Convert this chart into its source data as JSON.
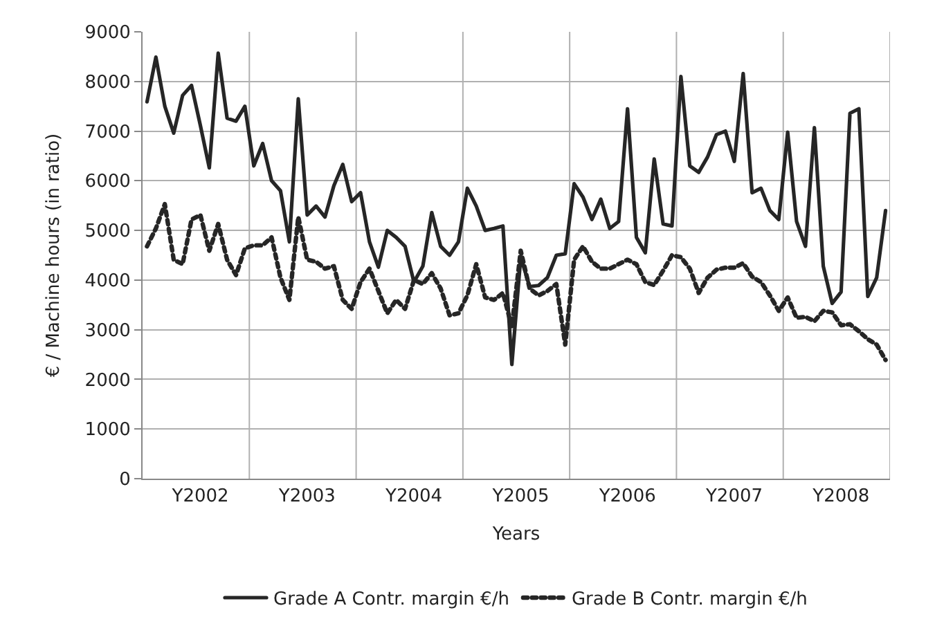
{
  "chart_data": {
    "type": "line",
    "xlabel": "Years",
    "ylabel": "€ / Machine hours (in ratio)",
    "categories": [
      null,
      null,
      null,
      null,
      null,
      null,
      "Y2002",
      null,
      null,
      null,
      null,
      null,
      null,
      null,
      null,
      null,
      null,
      null,
      "Y2003",
      null,
      null,
      null,
      null,
      null,
      null,
      null,
      null,
      null,
      null,
      null,
      "Y2004",
      null,
      null,
      null,
      null,
      null,
      null,
      null,
      null,
      null,
      null,
      null,
      "Y2005",
      null,
      null,
      null,
      null,
      null,
      null,
      null,
      null,
      null,
      null,
      null,
      "Y2006",
      null,
      null,
      null,
      null,
      null,
      null,
      null,
      null,
      null,
      null,
      null,
      "Y2007",
      null,
      null,
      null,
      null,
      null,
      null,
      null,
      null,
      null,
      null,
      null,
      "Y2008",
      null,
      null,
      null,
      null,
      null
    ],
    "series": [
      {
        "name": "Grade A Contr. margin €/h",
        "color": "#262626",
        "line_style": "solid",
        "values": [
          7590,
          8490,
          7500,
          6960,
          7720,
          7920,
          7110,
          6260,
          8570,
          7260,
          7200,
          7500,
          6300,
          6750,
          6000,
          5800,
          4770,
          7650,
          5310,
          5490,
          5270,
          5900,
          6330,
          5580,
          5760,
          4770,
          4260,
          5000,
          4860,
          4680,
          3960,
          4280,
          5360,
          4680,
          4500,
          4770,
          5850,
          5490,
          5000,
          5040,
          5090,
          2300,
          4460,
          3870,
          3890,
          4050,
          4500,
          4530,
          5940,
          5670,
          5220,
          5630,
          5040,
          5180,
          7450,
          4860,
          4550,
          6440,
          5130,
          5090,
          8100,
          6300,
          6170,
          6480,
          6930,
          7000,
          6390,
          8160,
          5760,
          5850,
          5400,
          5220,
          6980,
          5180,
          4680,
          7070,
          4280,
          3530,
          3760,
          7360,
          7450,
          3670,
          4050,
          5400
        ]
      },
      {
        "name": "Grade B Contr. margin €/h",
        "color": "#262626",
        "line_style": "dotted",
        "values": [
          4680,
          5040,
          5530,
          4410,
          4320,
          5220,
          5310,
          4590,
          5130,
          4410,
          4100,
          4640,
          4700,
          4700,
          4860,
          4050,
          3600,
          5270,
          4410,
          4370,
          4230,
          4280,
          3600,
          3420,
          3960,
          4230,
          3780,
          3330,
          3600,
          3420,
          4000,
          3920,
          4140,
          3830,
          3290,
          3330,
          3690,
          4320,
          3650,
          3600,
          3740,
          3060,
          4590,
          3830,
          3690,
          3780,
          3920,
          2700,
          4410,
          4680,
          4370,
          4230,
          4230,
          4320,
          4410,
          4320,
          3960,
          3900,
          4190,
          4500,
          4460,
          4230,
          3740,
          4050,
          4210,
          4250,
          4250,
          4340,
          4070,
          3960,
          3690,
          3380,
          3650,
          3240,
          3260,
          3170,
          3380,
          3350,
          3090,
          3110,
          2970,
          2810,
          2700,
          2390
        ]
      }
    ],
    "ylim": [
      0,
      9000
    ],
    "yticks": [
      0,
      1000,
      2000,
      3000,
      4000,
      5000,
      6000,
      7000,
      8000,
      9000
    ],
    "grid": true,
    "legend": "bottom",
    "marker": "none"
  }
}
